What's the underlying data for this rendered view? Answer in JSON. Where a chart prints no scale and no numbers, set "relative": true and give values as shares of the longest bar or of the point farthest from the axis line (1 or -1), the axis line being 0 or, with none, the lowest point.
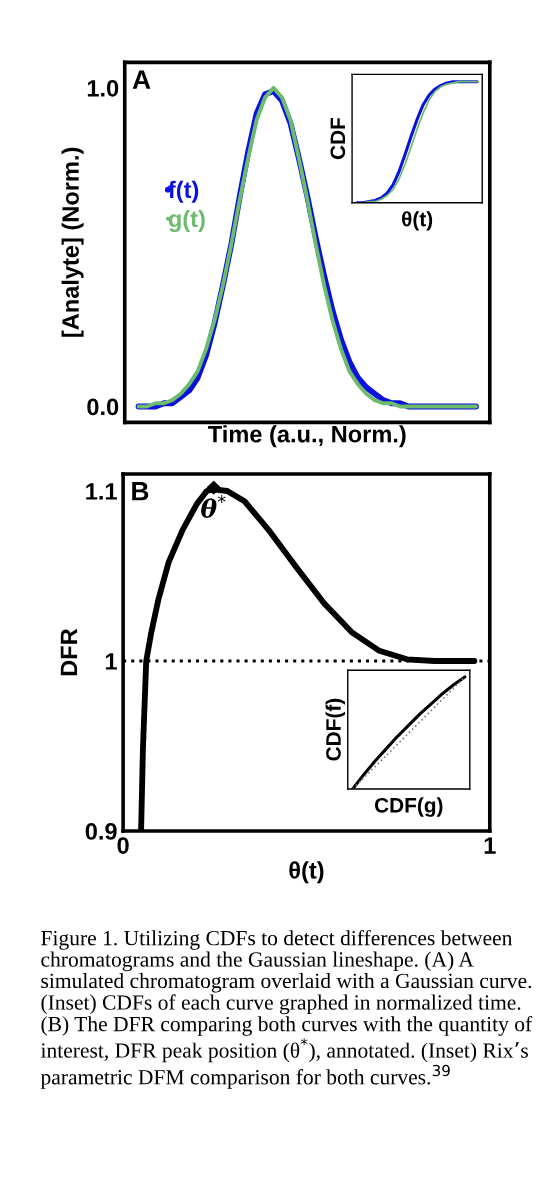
{
  "chart_data": [
    {
      "type": "line",
      "xlabel": "Time (a.u., Norm.)",
      "ylabel": "[Analyte] (Norm.)",
      "annotations": [
        "A"
      ],
      "categories": [
        null,
        null,
        null,
        null,
        null,
        null,
        null,
        null,
        null,
        null,
        null,
        null,
        null,
        null,
        null,
        null,
        null,
        null,
        null,
        null,
        null,
        null,
        null,
        null,
        null,
        null,
        null,
        null,
        null,
        null,
        null,
        null,
        null,
        null,
        null,
        null,
        null,
        null,
        null,
        null,
        null
      ],
      "series": [
        {
          "name": "f(t)",
          "color": "#0a10e0",
          "values": [
            0,
            0,
            0,
            0.01,
            0.01,
            0.03,
            0.05,
            0.09,
            0.16,
            0.26,
            0.38,
            0.51,
            0.66,
            0.8,
            0.92,
            0.98,
            0.99,
            0.96,
            0.89,
            0.78,
            0.66,
            0.53,
            0.41,
            0.3,
            0.21,
            0.14,
            0.09,
            0.06,
            0.04,
            0.02,
            0.01,
            0.01,
            0,
            0,
            0,
            0,
            0,
            0,
            0,
            0,
            0
          ]
        },
        {
          "name": "g(t)",
          "color": "#6dbb6d",
          "values": [
            0,
            0,
            0.01,
            0.01,
            0.02,
            0.04,
            0.07,
            0.11,
            0.18,
            0.27,
            0.38,
            0.51,
            0.65,
            0.78,
            0.9,
            0.97,
            1.0,
            0.97,
            0.9,
            0.78,
            0.65,
            0.51,
            0.38,
            0.27,
            0.18,
            0.11,
            0.07,
            0.04,
            0.02,
            0.01,
            0.01,
            0,
            0,
            0,
            0,
            0,
            0,
            0,
            0,
            0,
            0
          ]
        }
      ],
      "ylim": [
        -0.05,
        1.08
      ],
      "yticks": [
        {
          "value": 0,
          "label": "0.0"
        },
        {
          "value": 1,
          "label": "1.0"
        }
      ],
      "tick_labels": "y",
      "legend": "left",
      "grid": false
    },
    {
      "type": "line",
      "xlabel": "θ(t)",
      "ylabel": "CDF",
      "relative": true,
      "tick_labels": false,
      "categories": [
        null,
        null,
        null,
        null,
        null,
        null,
        null,
        null,
        null,
        null,
        null,
        null,
        null,
        null,
        null,
        null,
        null,
        null,
        null,
        null,
        null
      ],
      "series": [
        {
          "color": "#0a10e0",
          "values": [
            0,
            0,
            0.01,
            0.02,
            0.04,
            0.08,
            0.15,
            0.26,
            0.4,
            0.55,
            0.69,
            0.81,
            0.89,
            0.94,
            0.97,
            0.99,
            1,
            1,
            1,
            1,
            1
          ]
        },
        {
          "color": "#6dbb6d",
          "values": [
            0,
            0,
            0.01,
            0.01,
            0.03,
            0.06,
            0.11,
            0.2,
            0.32,
            0.46,
            0.61,
            0.74,
            0.85,
            0.92,
            0.96,
            0.98,
            0.99,
            1,
            1,
            1,
            1
          ]
        }
      ]
    },
    {
      "type": "line",
      "xlabel": "θ(t)",
      "ylabel": "DFR",
      "annotations": [
        "B",
        {
          "text": "θ$^{*}$",
          "x": 0.247,
          "y": 1.102
        }
      ],
      "series": [
        {
          "color": "#000000",
          "x": [
            0.049,
            0.054,
            0.063,
            0.077,
            0.096,
            0.124,
            0.162,
            0.2,
            0.228,
            0.247,
            0.284,
            0.331,
            0.397,
            0.473,
            0.548,
            0.623,
            0.699,
            0.774,
            0.849,
            0.958
          ],
          "values": [
            0.9,
            0.948,
            1.0,
            1.017,
            1.036,
            1.058,
            1.077,
            1.092,
            1.1,
            1.101,
            1.1,
            1.094,
            1.077,
            1.055,
            1.034,
            1.017,
            1.006,
            1.001,
            1.0,
            1.0
          ]
        },
        {
          "type": "scatter",
          "color": "#000000",
          "marker": "diamond",
          "x": [
            0.247
          ],
          "values": [
            1.102
          ]
        }
      ],
      "ref_lines": [
        {
          "axis": "y",
          "value": 1,
          "line_style": "dotted",
          "color": "#000000"
        }
      ],
      "xlim": [
        0,
        1
      ],
      "xticks": [
        0,
        1
      ],
      "ylim": [
        0.9,
        1.11
      ],
      "yticks": [
        0.9,
        1,
        1.1
      ],
      "grid": false
    },
    {
      "type": "line",
      "xlabel": "CDF(g)",
      "ylabel": "CDF(f)",
      "relative": true,
      "tick_labels": false,
      "categories": [
        null,
        null,
        null,
        null,
        null,
        null,
        null,
        null,
        null,
        null,
        null
      ],
      "series": [
        {
          "color": "#000000",
          "values": [
            0,
            0.13,
            0.25,
            0.36,
            0.47,
            0.57,
            0.67,
            0.76,
            0.85,
            0.93,
            1.0
          ]
        },
        {
          "color": "#808080",
          "line_style": "dotted",
          "values": [
            0,
            0.1,
            0.2,
            0.3,
            0.4,
            0.5,
            0.6,
            0.7,
            0.8,
            0.9,
            1.0
          ]
        }
      ]
    },
    {
      "type": "other",
      "annotations": [
        "Figure 1. Utilizing CDFs to detect differences between chromatograms and the Gaussian lineshape. (A) A simulated chromatogram overlaid with a Gaussian curve. (Inset) CDFs of each curve graphed in normalized time. (B) The DFR comparing both curves with the quantity of interest, DFR peak position (θ$^{*}$), annotated. (Inset) Rix’s parametric DFM comparison for both curves.$^{39}$"
      ]
    }
  ]
}
